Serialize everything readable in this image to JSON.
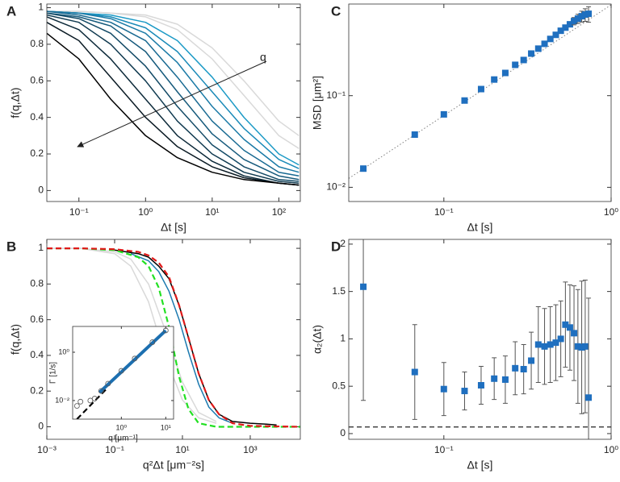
{
  "chart_data": [
    {
      "type": "line",
      "panel_label": "A",
      "xlabel": "Δt [s]",
      "ylabel": "f(q,Δt)",
      "annotation": "q",
      "xlog": true,
      "xlim": [
        0.033,
        210
      ],
      "ylim": [
        -0.06,
        1.02
      ],
      "xticks": [
        {
          "value": 0.1,
          "label": "10⁻¹"
        },
        {
          "value": 1,
          "label": "10⁰"
        },
        {
          "value": 10,
          "label": "10¹"
        },
        {
          "value": 100,
          "label": "10²"
        }
      ],
      "yticks": [
        0,
        0.2,
        0.4,
        0.6,
        0.8,
        1
      ],
      "series": [
        {
          "color": "#d9d9d9",
          "x": [
            0.033,
            0.1,
            0.3,
            1,
            3,
            10,
            30,
            100,
            200
          ],
          "values": [
            0.98,
            0.98,
            0.97,
            0.96,
            0.91,
            0.78,
            0.6,
            0.38,
            0.3
          ]
        },
        {
          "color": "#d9d9d9",
          "x": [
            0.033,
            0.1,
            0.3,
            1,
            3,
            10,
            30,
            100,
            200
          ],
          "values": [
            0.98,
            0.98,
            0.97,
            0.95,
            0.88,
            0.72,
            0.52,
            0.3,
            0.23
          ]
        },
        {
          "color": "#1c9ac6",
          "x": [
            0.033,
            0.1,
            0.3,
            1,
            3,
            10,
            30,
            100,
            200
          ],
          "values": [
            0.98,
            0.97,
            0.96,
            0.92,
            0.82,
            0.62,
            0.4,
            0.2,
            0.14
          ]
        },
        {
          "color": "#1a8ab8",
          "x": [
            0.033,
            0.1,
            0.3,
            1,
            3,
            10,
            30,
            100,
            200
          ],
          "values": [
            0.98,
            0.97,
            0.95,
            0.89,
            0.76,
            0.54,
            0.34,
            0.17,
            0.12
          ]
        },
        {
          "color": "#1a7aa6",
          "x": [
            0.033,
            0.1,
            0.3,
            1,
            3,
            10,
            30,
            100,
            200
          ],
          "values": [
            0.98,
            0.97,
            0.94,
            0.86,
            0.7,
            0.46,
            0.28,
            0.13,
            0.1
          ]
        },
        {
          "color": "#196a92",
          "x": [
            0.033,
            0.1,
            0.3,
            1,
            3,
            10,
            30,
            100,
            200
          ],
          "values": [
            0.98,
            0.96,
            0.92,
            0.82,
            0.62,
            0.38,
            0.22,
            0.1,
            0.08
          ]
        },
        {
          "color": "#165a7c",
          "x": [
            0.033,
            0.1,
            0.3,
            1,
            3,
            10,
            30,
            100,
            200
          ],
          "values": [
            0.97,
            0.95,
            0.9,
            0.76,
            0.54,
            0.31,
            0.17,
            0.08,
            0.06
          ]
        },
        {
          "color": "#134a66",
          "x": [
            0.033,
            0.1,
            0.3,
            1,
            3,
            10,
            30,
            100,
            200
          ],
          "values": [
            0.97,
            0.94,
            0.86,
            0.68,
            0.46,
            0.25,
            0.13,
            0.06,
            0.05
          ]
        },
        {
          "color": "#103a50",
          "x": [
            0.033,
            0.1,
            0.3,
            1,
            3,
            10,
            30,
            100,
            200
          ],
          "values": [
            0.96,
            0.92,
            0.8,
            0.6,
            0.38,
            0.2,
            0.1,
            0.05,
            0.04
          ]
        },
        {
          "color": "#0d2a3a",
          "x": [
            0.033,
            0.1,
            0.3,
            1,
            3,
            10,
            30,
            100,
            200
          ],
          "values": [
            0.95,
            0.88,
            0.72,
            0.5,
            0.3,
            0.16,
            0.08,
            0.04,
            0.03
          ]
        },
        {
          "color": "#0a1a24",
          "x": [
            0.033,
            0.1,
            0.3,
            1,
            3,
            10,
            30,
            100,
            200
          ],
          "values": [
            0.92,
            0.82,
            0.62,
            0.4,
            0.24,
            0.13,
            0.07,
            0.04,
            0.03
          ]
        },
        {
          "color": "#000000",
          "x": [
            0.033,
            0.1,
            0.3,
            1,
            3,
            10,
            30,
            100,
            200
          ],
          "values": [
            0.86,
            0.72,
            0.5,
            0.3,
            0.18,
            0.1,
            0.06,
            0.04,
            0.03
          ]
        }
      ]
    },
    {
      "type": "line",
      "panel_label": "B",
      "xlabel": "q²Δt [μm⁻²s]",
      "ylabel": "f(q,Δt)",
      "xlog": true,
      "xlim": [
        0.001,
        30000
      ],
      "ylim": [
        -0.07,
        1.05
      ],
      "xticks": [
        {
          "value": 0.001,
          "label": "10⁻³"
        },
        {
          "value": 0.1,
          "label": "10⁻¹"
        },
        {
          "value": 10,
          "label": "10¹"
        },
        {
          "value": 1000,
          "label": "10³"
        }
      ],
      "yticks": [
        0,
        0.2,
        0.4,
        0.6,
        0.8,
        1
      ],
      "series": [
        {
          "color": "#d9d9d9",
          "x": [
            0.001,
            0.01,
            0.1,
            0.3,
            1,
            3,
            10,
            30,
            100
          ],
          "values": [
            1,
            1,
            0.97,
            0.9,
            0.7,
            0.4,
            0.15,
            0.05,
            0.02
          ]
        },
        {
          "color": "#d9d9d9",
          "x": [
            0.001,
            0.01,
            0.1,
            0.3,
            1,
            3,
            10,
            30,
            100
          ],
          "values": [
            1,
            1,
            0.98,
            0.94,
            0.8,
            0.55,
            0.25,
            0.08,
            0.03
          ]
        },
        {
          "color": "#1c7ab0",
          "x": [
            0.3,
            1,
            2,
            4,
            8,
            15,
            30,
            60,
            120,
            300
          ],
          "values": [
            0.97,
            0.93,
            0.87,
            0.76,
            0.6,
            0.42,
            0.24,
            0.11,
            0.05,
            0.02
          ]
        },
        {
          "color": "#000000",
          "x": [
            0.1,
            0.5,
            1,
            2,
            4,
            8,
            15,
            30,
            60,
            120,
            300,
            1000,
            3000,
            6000
          ],
          "values": [
            0.99,
            0.97,
            0.95,
            0.9,
            0.83,
            0.68,
            0.5,
            0.3,
            0.15,
            0.07,
            0.03,
            0.02,
            0.015,
            0.01
          ]
        },
        {
          "color": "#22e022",
          "dash": true,
          "x": [
            0.001,
            0.01,
            0.1,
            0.5,
            1,
            2,
            4,
            8,
            15,
            30,
            100,
            30000
          ],
          "values": [
            1,
            1,
            0.99,
            0.95,
            0.9,
            0.78,
            0.56,
            0.28,
            0.1,
            0.02,
            0,
            0
          ]
        },
        {
          "color": "#e01818",
          "dash": true,
          "x": [
            0.001,
            0.01,
            0.1,
            0.5,
            1,
            2,
            4,
            8,
            15,
            30,
            60,
            120,
            300,
            1000,
            30000
          ],
          "values": [
            1,
            1,
            0.995,
            0.98,
            0.96,
            0.92,
            0.84,
            0.68,
            0.5,
            0.3,
            0.15,
            0.07,
            0.02,
            0.005,
            0
          ]
        }
      ]
    },
    {
      "type": "scatter",
      "panel_label": "C",
      "xlabel": "Δt [s]",
      "ylabel": "MSD [μm²]",
      "xlog": true,
      "ylog": true,
      "xlim": [
        0.027,
        1
      ],
      "ylim": [
        0.007,
        1
      ],
      "xticks": [
        {
          "value": 0.1,
          "label": "10⁻¹"
        },
        {
          "value": 1,
          "label": "10⁰"
        }
      ],
      "yticks": [
        {
          "value": 0.01,
          "label": "10⁻²"
        },
        {
          "value": 0.1,
          "label": "10⁻¹"
        }
      ],
      "series": [
        {
          "color": "#808080",
          "style": "dotted",
          "x": [
            0.027,
            1
          ],
          "values": [
            0.0125,
            0.98
          ]
        },
        {
          "color": "#1f6fbf",
          "marker": "square",
          "x": [
            0.033,
            0.067,
            0.1,
            0.133,
            0.167,
            0.2,
            0.233,
            0.267,
            0.3,
            0.333,
            0.367,
            0.4,
            0.433,
            0.467,
            0.5,
            0.533,
            0.567,
            0.6,
            0.633,
            0.667,
            0.7,
            0.733
          ],
          "values": [
            0.016,
            0.0376,
            0.0625,
            0.0885,
            0.118,
            0.15,
            0.177,
            0.217,
            0.245,
            0.288,
            0.326,
            0.368,
            0.416,
            0.461,
            0.511,
            0.553,
            0.601,
            0.652,
            0.693,
            0.736,
            0.767,
            0.783
          ],
          "errors": [
            0,
            0,
            0,
            0,
            0,
            0,
            0,
            0,
            0,
            0,
            0,
            0,
            0,
            0,
            0.02,
            0.03,
            0.04,
            0.06,
            0.08,
            0.1,
            0.12,
            0.15
          ]
        }
      ]
    },
    {
      "type": "scatter",
      "panel_label": "D",
      "xlabel": "Δt [s]",
      "ylabel": "α₂(Δt)",
      "xlog": true,
      "xlim": [
        0.027,
        1
      ],
      "ylim": [
        -0.06,
        2.05
      ],
      "xticks": [
        {
          "value": 0.1,
          "label": "10⁻¹"
        },
        {
          "value": 1,
          "label": "10⁰"
        }
      ],
      "yticks": [
        0,
        0.5,
        1,
        1.5,
        2
      ],
      "hline": 0.07,
      "series": [
        {
          "color": "#1f6fbf",
          "marker": "square",
          "x": [
            0.033,
            0.067,
            0.1,
            0.133,
            0.167,
            0.2,
            0.233,
            0.267,
            0.3,
            0.333,
            0.367,
            0.4,
            0.433,
            0.467,
            0.5,
            0.533,
            0.567,
            0.6,
            0.633,
            0.667,
            0.7,
            0.733
          ],
          "values": [
            1.55,
            0.65,
            0.47,
            0.45,
            0.51,
            0.58,
            0.57,
            0.69,
            0.68,
            0.77,
            0.94,
            0.92,
            0.94,
            0.96,
            1.0,
            1.15,
            1.12,
            1.06,
            0.92,
            0.91,
            0.92,
            0.38
          ],
          "errors": [
            1.2,
            0.5,
            0.28,
            0.2,
            0.2,
            0.22,
            0.25,
            0.28,
            0.26,
            0.3,
            0.4,
            0.4,
            0.4,
            0.4,
            0.4,
            0.45,
            0.45,
            0.5,
            0.6,
            0.7,
            0.7,
            1.05
          ]
        }
      ]
    },
    {
      "type": "scatter",
      "xlabel": "q [μm⁻¹]",
      "ylabel": "Γ [1/s]",
      "xlog": true,
      "ylog": true,
      "xlim": [
        0.08,
        15
      ],
      "ylim": [
        0.0017,
        11.7
      ],
      "xticks": [
        {
          "value": 1,
          "label": "10⁰"
        },
        {
          "value": 10,
          "label": "10¹"
        }
      ],
      "yticks": [
        {
          "value": 0.01,
          "label": "10⁻²"
        },
        {
          "value": 1,
          "label": "10⁰"
        }
      ],
      "series": [
        {
          "color": "#000000",
          "dash": true,
          "x": [
            0.1,
            0.5
          ],
          "values": [
            0.0017,
            0.035
          ]
        },
        {
          "color": "#1c6fb0",
          "width": 4,
          "x": [
            0.32,
            10
          ],
          "values": [
            0.0215,
            7.9
          ]
        },
        {
          "color": "#555555",
          "marker": "circle",
          "x": [
            0.1,
            0.12,
            0.2,
            0.25,
            0.35,
            0.5,
            1,
            2,
            5,
            10
          ],
          "values": [
            0.006,
            0.009,
            0.01,
            0.012,
            0.025,
            0.05,
            0.17,
            0.55,
            2.6,
            8
          ]
        }
      ]
    }
  ]
}
